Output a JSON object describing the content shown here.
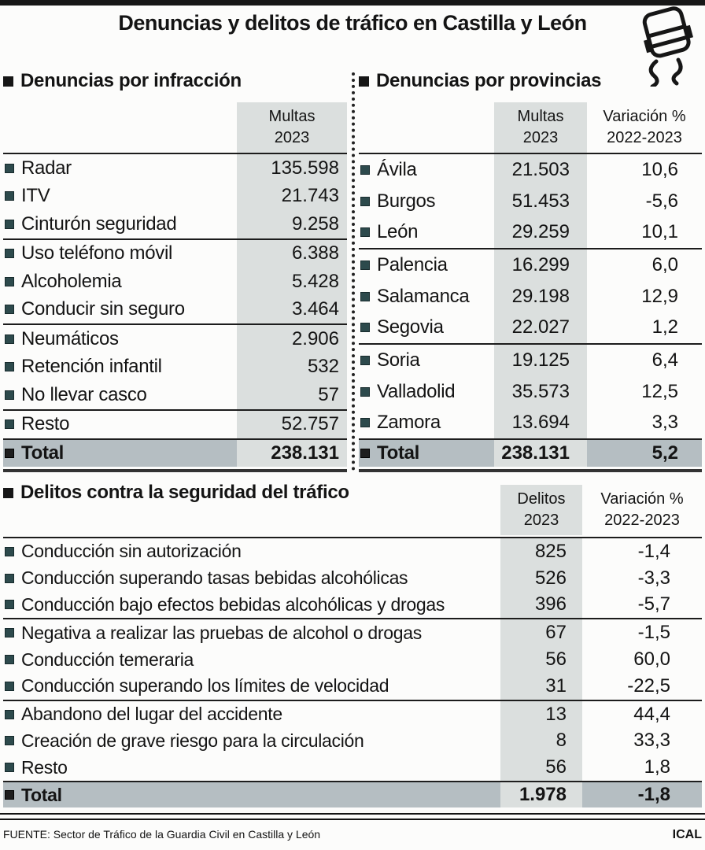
{
  "page": {
    "title": "Denuncias y delitos de tráfico en Castilla y León",
    "source": "FUENTE: Sector de Tráfico de la Guardia Civil en Castilla y León",
    "credit": "ICAL"
  },
  "icons": {
    "title_icon": "skidding-car-sketch",
    "row_bullet": "small-teal-square",
    "section_bullet": "small-black-square"
  },
  "colors": {
    "column_shade": "#dbdfde",
    "total_band": "#b5bec2",
    "row_bullet": "#2d4a4c",
    "line": "#1c1c1c",
    "top_bar": "#171717"
  },
  "chart_data": [
    {
      "type": "table",
      "title": "Denuncias por infracción",
      "headers": [
        {
          "lines": [
            "Multas",
            "2023"
          ],
          "shaded": true
        }
      ],
      "rows": [
        {
          "label": "Radar",
          "values": [
            "135.598"
          ]
        },
        {
          "label": "ITV",
          "values": [
            "21.743"
          ]
        },
        {
          "label": "Cinturón seguridad",
          "values": [
            "9.258"
          ]
        },
        {
          "label": "Uso teléfono móvil",
          "values": [
            "6.388"
          ],
          "sep": true
        },
        {
          "label": "Alcoholemia",
          "values": [
            "5.428"
          ]
        },
        {
          "label": "Conducir sin seguro",
          "values": [
            "3.464"
          ]
        },
        {
          "label": "Neumáticos",
          "values": [
            "2.906"
          ],
          "sep": true
        },
        {
          "label": "Retención infantil",
          "values": [
            "532"
          ]
        },
        {
          "label": "No llevar casco",
          "values": [
            "57"
          ]
        },
        {
          "label": "Resto",
          "values": [
            "52.757"
          ],
          "sep": true
        }
      ],
      "total": {
        "label": "Total",
        "values": [
          "238.131"
        ]
      }
    },
    {
      "type": "table",
      "title": "Denuncias por provincias",
      "headers": [
        {
          "lines": [
            "Multas",
            "2023"
          ],
          "shaded": true
        },
        {
          "lines": [
            "Variación %",
            "2022-2023"
          ],
          "shaded": false
        }
      ],
      "rows": [
        {
          "label": "Ávila",
          "values": [
            "21.503",
            "10,6"
          ]
        },
        {
          "label": "Burgos",
          "values": [
            "51.453",
            "-5,6"
          ]
        },
        {
          "label": "León",
          "values": [
            "29.259",
            "10,1"
          ]
        },
        {
          "label": "Palencia",
          "values": [
            "16.299",
            "6,0"
          ],
          "sep": true
        },
        {
          "label": "Salamanca",
          "values": [
            "29.198",
            "12,9"
          ]
        },
        {
          "label": "Segovia",
          "values": [
            "22.027",
            "1,2"
          ]
        },
        {
          "label": "Soria",
          "values": [
            "19.125",
            "6,4"
          ],
          "sep": true
        },
        {
          "label": "Valladolid",
          "values": [
            "35.573",
            "12,5"
          ]
        },
        {
          "label": "Zamora",
          "values": [
            "13.694",
            "3,3"
          ]
        }
      ],
      "total": {
        "label": "Total",
        "values": [
          "238.131",
          "5,2"
        ]
      }
    },
    {
      "type": "table",
      "title": "Delitos contra la seguridad del tráfico",
      "headers": [
        {
          "lines": [
            "Delitos",
            "2023"
          ],
          "shaded": true
        },
        {
          "lines": [
            "Variación %",
            "2022-2023"
          ],
          "shaded": false
        }
      ],
      "rows": [
        {
          "label": "Conducción sin autorización",
          "values": [
            "825",
            "-1,4"
          ]
        },
        {
          "label": "Conducción superando tasas bebidas alcohólicas",
          "values": [
            "526",
            "-3,3"
          ]
        },
        {
          "label": "Conducción bajo efectos bebidas alcohólicas y drogas",
          "values": [
            "396",
            "-5,7"
          ]
        },
        {
          "label": "Negativa a realizar las pruebas de alcohol o drogas",
          "values": [
            "67",
            "-1,5"
          ],
          "sep": true
        },
        {
          "label": "Conducción temeraria",
          "values": [
            "56",
            "60,0"
          ]
        },
        {
          "label": "Conducción superando los límites de velocidad",
          "values": [
            "31",
            "-22,5"
          ]
        },
        {
          "label": "Abandono del lugar del accidente",
          "values": [
            "13",
            "44,4"
          ],
          "sep": true
        },
        {
          "label": "Creación de grave riesgo para la circulación",
          "values": [
            "8",
            "33,3"
          ]
        },
        {
          "label": "Resto",
          "values": [
            "56",
            "1,8"
          ]
        }
      ],
      "total": {
        "label": "Total",
        "values": [
          "1.978",
          "-1,8"
        ]
      }
    }
  ]
}
